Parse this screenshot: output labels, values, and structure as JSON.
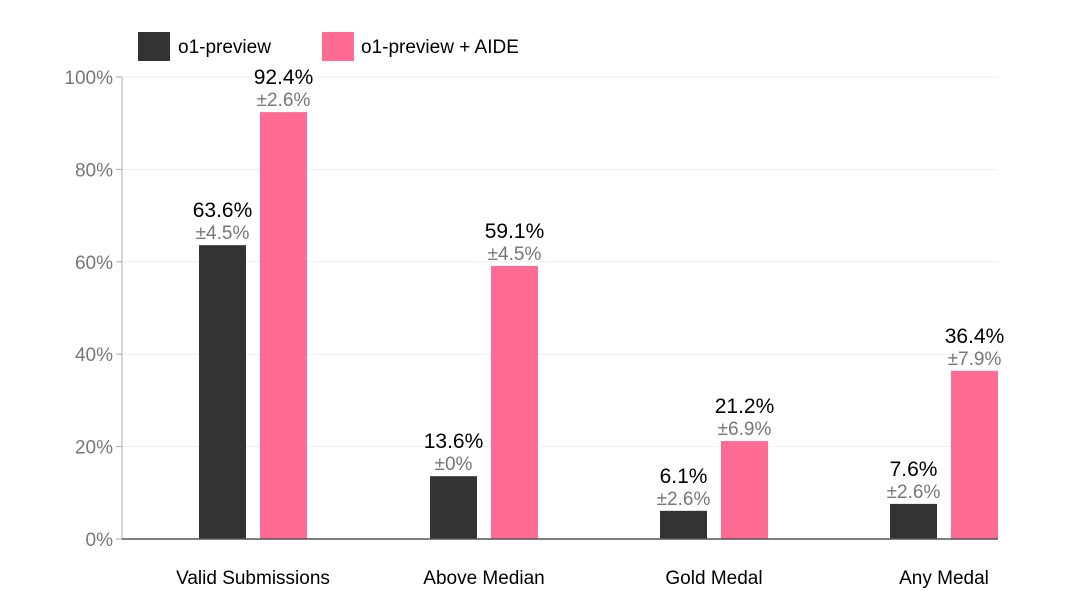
{
  "chart_data": {
    "type": "bar",
    "categories": [
      "Valid Submissions",
      "Above Median",
      "Gold Medal",
      "Any Medal"
    ],
    "series": [
      {
        "name": "o1-preview",
        "color": "#333333",
        "values": [
          63.6,
          13.6,
          6.1,
          7.6
        ],
        "value_labels": [
          "63.6%",
          "13.6%",
          "6.1%",
          "7.6%"
        ],
        "error_labels": [
          "±4.5%",
          "±0%",
          "±2.6%",
          "±2.6%"
        ]
      },
      {
        "name": "o1-preview + AIDE",
        "color": "#ff6b93",
        "values": [
          92.4,
          59.1,
          21.2,
          36.4
        ],
        "value_labels": [
          "92.4%",
          "59.1%",
          "21.2%",
          "36.4%"
        ],
        "error_labels": [
          "±2.6%",
          "±4.5%",
          "±6.9%",
          "±7.9%"
        ]
      }
    ],
    "ylim": [
      0,
      100
    ],
    "yticks": [
      0,
      20,
      40,
      60,
      80,
      100
    ],
    "ytick_labels": [
      "0%",
      "20%",
      "40%",
      "60%",
      "80%",
      "100%"
    ],
    "grid": true,
    "legend_position": "top-left"
  }
}
